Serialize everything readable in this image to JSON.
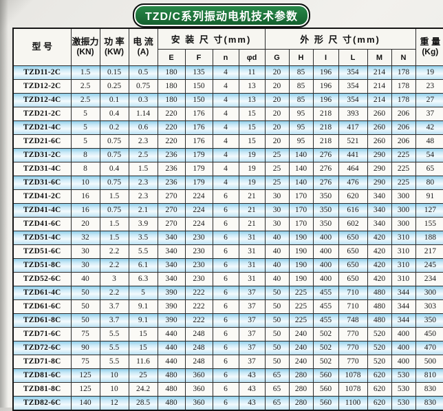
{
  "title": "TZD/C系列振动电机技术参数",
  "accent_colors": {
    "badge_green": "#1c7038",
    "stripe_blue": "#aedcf1",
    "paper": "#f2f1ed"
  },
  "table": {
    "columns": [
      {
        "id": "model",
        "label": "型  号"
      },
      {
        "id": "force",
        "label": "激振力",
        "unit": "(KN)"
      },
      {
        "id": "power",
        "label": "功 率",
        "unit": "(KW)"
      },
      {
        "id": "current",
        "label": "电 流",
        "unit": "(A)"
      },
      {
        "id": "install",
        "label": "安 装 尺 寸(mm)",
        "subcols": [
          "E",
          "F",
          "n",
          "φd"
        ]
      },
      {
        "id": "overall",
        "label": "外 形 尺 寸(mm)",
        "subcols": [
          "G",
          "H",
          "I",
          "L",
          "M",
          "N"
        ]
      },
      {
        "id": "weight",
        "label": "重 量",
        "unit": "(Kg)"
      }
    ],
    "rows": [
      [
        "TZD11-2C",
        "1.5",
        "0.15",
        "0.5",
        "180",
        "135",
        "4",
        "11",
        "20",
        "85",
        "196",
        "354",
        "214",
        "178",
        "19"
      ],
      [
        "TZD12-2C",
        "2.5",
        "0.25",
        "0.75",
        "180",
        "150",
        "4",
        "13",
        "20",
        "85",
        "196",
        "354",
        "214",
        "178",
        "23"
      ],
      [
        "TZD12-4C",
        "2.5",
        "0.1",
        "0.3",
        "180",
        "150",
        "4",
        "13",
        "20",
        "85",
        "196",
        "354",
        "214",
        "178",
        "27"
      ],
      [
        "TZD21-2C",
        "5",
        "0.4",
        "1.14",
        "220",
        "176",
        "4",
        "15",
        "20",
        "95",
        "218",
        "393",
        "260",
        "206",
        "37"
      ],
      [
        "TZD21-4C",
        "5",
        "0.2",
        "0.6",
        "220",
        "176",
        "4",
        "15",
        "20",
        "95",
        "218",
        "417",
        "260",
        "206",
        "42"
      ],
      [
        "TZD21-6C",
        "5",
        "0.75",
        "2.3",
        "220",
        "176",
        "4",
        "15",
        "20",
        "95",
        "218",
        "521",
        "260",
        "206",
        "48"
      ],
      [
        "TZD31-2C",
        "8",
        "0.75",
        "2.5",
        "236",
        "179",
        "4",
        "19",
        "25",
        "140",
        "276",
        "441",
        "290",
        "225",
        "54"
      ],
      [
        "TZD31-4C",
        "8",
        "0.4",
        "1.5",
        "236",
        "179",
        "4",
        "19",
        "25",
        "140",
        "276",
        "464",
        "290",
        "225",
        "65"
      ],
      [
        "TZD31-6C",
        "10",
        "0.75",
        "2.3",
        "236",
        "179",
        "4",
        "19",
        "25",
        "140",
        "276",
        "476",
        "290",
        "225",
        "80"
      ],
      [
        "TZD41-2C",
        "16",
        "1.5",
        "2.3",
        "270",
        "224",
        "6",
        "21",
        "30",
        "170",
        "350",
        "620",
        "340",
        "300",
        "91"
      ],
      [
        "TZD41-4C",
        "16",
        "0.75",
        "2.1",
        "270",
        "224",
        "6",
        "21",
        "30",
        "170",
        "350",
        "616",
        "340",
        "300",
        "127"
      ],
      [
        "TZD41-6C",
        "20",
        "1.5",
        "3.9",
        "270",
        "224",
        "6",
        "21",
        "30",
        "170",
        "350",
        "602",
        "340",
        "300",
        "155"
      ],
      [
        "TZD51-4C",
        "32",
        "1.5",
        "3.5",
        "340",
        "230",
        "6",
        "31",
        "40",
        "190",
        "400",
        "650",
        "420",
        "310",
        "188"
      ],
      [
        "TZD51-6C",
        "30",
        "2.2",
        "5.5",
        "340",
        "230",
        "6",
        "31",
        "40",
        "190",
        "400",
        "650",
        "420",
        "310",
        "217"
      ],
      [
        "TZD51-8C",
        "30",
        "2.2",
        "6.1",
        "340",
        "230",
        "6",
        "31",
        "40",
        "190",
        "400",
        "650",
        "420",
        "310",
        "245"
      ],
      [
        "TZD52-6C",
        "40",
        "3",
        "6.3",
        "340",
        "230",
        "6",
        "31",
        "40",
        "190",
        "400",
        "650",
        "420",
        "310",
        "234"
      ],
      [
        "TZD61-4C",
        "50",
        "2.2",
        "5",
        "390",
        "222",
        "6",
        "37",
        "50",
        "225",
        "455",
        "710",
        "480",
        "344",
        "300"
      ],
      [
        "TZD61-6C",
        "50",
        "3.7",
        "9.1",
        "390",
        "222",
        "6",
        "37",
        "50",
        "225",
        "455",
        "710",
        "480",
        "344",
        "303"
      ],
      [
        "TZD61-8C",
        "50",
        "3.7",
        "9.1",
        "390",
        "222",
        "6",
        "37",
        "50",
        "225",
        "455",
        "748",
        "480",
        "344",
        "350"
      ],
      [
        "TZD71-6C",
        "75",
        "5.5",
        "15",
        "440",
        "248",
        "6",
        "37",
        "50",
        "240",
        "502",
        "770",
        "520",
        "400",
        "450"
      ],
      [
        "TZD72-6C",
        "90",
        "5.5",
        "15",
        "440",
        "248",
        "6",
        "37",
        "50",
        "240",
        "502",
        "770",
        "520",
        "400",
        "470"
      ],
      [
        "TZD71-8C",
        "75",
        "5.5",
        "11.6",
        "440",
        "248",
        "6",
        "37",
        "50",
        "240",
        "502",
        "770",
        "520",
        "400",
        "500"
      ],
      [
        "TZD81-6C",
        "125",
        "10",
        "25",
        "480",
        "360",
        "6",
        "43",
        "65",
        "280",
        "560",
        "1078",
        "620",
        "530",
        "810"
      ],
      [
        "TZD81-8C",
        "125",
        "10",
        "24.2",
        "480",
        "360",
        "6",
        "43",
        "65",
        "280",
        "560",
        "1078",
        "620",
        "530",
        "830"
      ],
      [
        "TZD82-6C",
        "140",
        "12",
        "28.5",
        "480",
        "360",
        "6",
        "43",
        "65",
        "280",
        "560",
        "1100",
        "620",
        "530",
        "830"
      ]
    ]
  }
}
